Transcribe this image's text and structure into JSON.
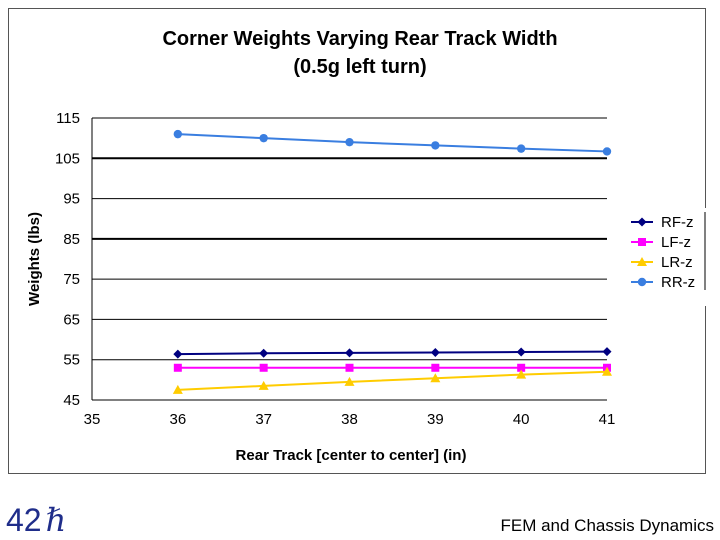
{
  "slide": {
    "number": "42",
    "number_glyph": "ℏ",
    "footer": "FEM and Chassis Dynamics"
  },
  "chart_data": {
    "type": "line",
    "title_line1": "Corner Weights Varying Rear Track Width",
    "title_line2": "(0.5g left turn)",
    "xlabel": "Rear Track [center to center] (in)",
    "ylabel": "Weights (lbs)",
    "xlim": [
      35,
      41
    ],
    "ylim": [
      45,
      115
    ],
    "xticks": [
      "35",
      "36",
      "37",
      "38",
      "39",
      "40",
      "41"
    ],
    "yticks": [
      "45",
      "55",
      "65",
      "75",
      "85",
      "95",
      "105",
      "115"
    ],
    "grid": "horizontal",
    "legend_position": "right",
    "x": [
      36,
      37,
      38,
      39,
      40,
      41
    ],
    "series": [
      {
        "name": "RF-z",
        "color": "#000080",
        "marker": "diamond",
        "values": [
          56.4,
          56.6,
          56.7,
          56.8,
          56.9,
          57.0
        ]
      },
      {
        "name": "LF-z",
        "color": "#ff00ff",
        "marker": "square",
        "values": [
          53.0,
          53.0,
          53.0,
          53.0,
          53.0,
          53.0
        ]
      },
      {
        "name": "LR-z",
        "color": "#ffcc00",
        "marker": "triangle",
        "values": [
          47.5,
          48.5,
          49.5,
          50.4,
          51.3,
          52.0
        ]
      },
      {
        "name": "RR-z",
        "color": "#3a7ee0",
        "marker": "circle",
        "values": [
          111.0,
          110.0,
          109.0,
          108.2,
          107.4,
          106.7
        ]
      }
    ]
  }
}
